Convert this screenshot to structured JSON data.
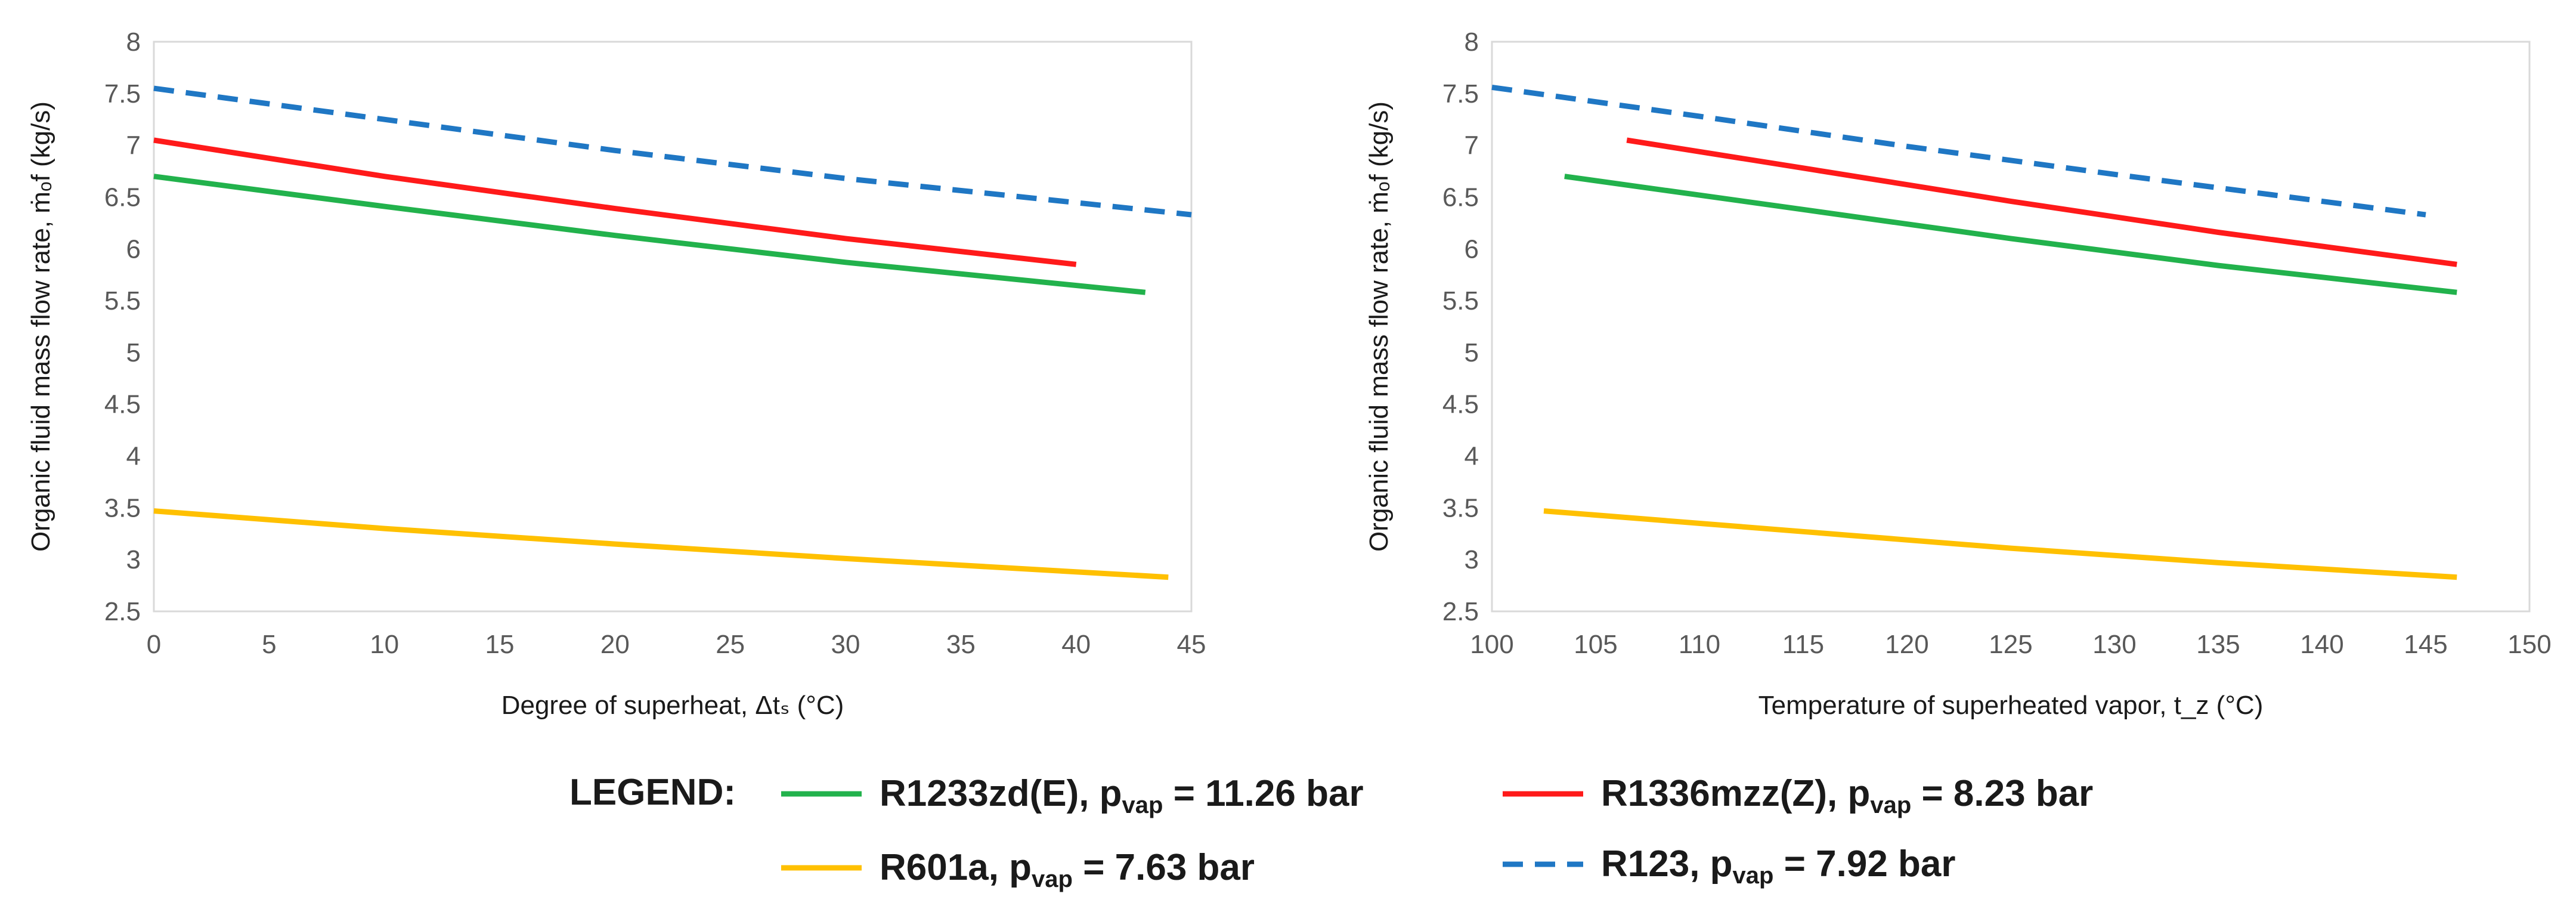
{
  "chart_data": [
    {
      "type": "line",
      "xlabel": "Degree of superheat, Δtₛ (°C)",
      "ylabel": "Organic fluid mass flow rate, ṁₒf (kg/s)",
      "xlim": [
        0,
        45
      ],
      "ylim": [
        2.5,
        8
      ],
      "xticks": [
        "0",
        "5",
        "10",
        "15",
        "20",
        "25",
        "30",
        "35",
        "40",
        "45"
      ],
      "yticks": [
        "2.5",
        "3",
        "3.5",
        "4",
        "4.5",
        "5",
        "5.5",
        "6",
        "6.5",
        "7",
        "7.5",
        "8"
      ],
      "grid": false,
      "series": [
        {
          "name": "R1233zd(E), pvap = 11.26 bar",
          "color": "#22b24c",
          "dash": "solid",
          "x": [
            0,
            10,
            20,
            30,
            43
          ],
          "y": [
            6.7,
            6.41,
            6.13,
            5.87,
            5.58
          ]
        },
        {
          "name": "R1336mzz(Z), pvap = 8.23 bar",
          "color": "#ff1a1a",
          "dash": "solid",
          "x": [
            0,
            10,
            20,
            30,
            40
          ],
          "y": [
            7.05,
            6.7,
            6.39,
            6.1,
            5.85
          ]
        },
        {
          "name": "R601a, pvap = 7.63 bar",
          "color": "#ffc000",
          "dash": "solid",
          "x": [
            0,
            10,
            20,
            30,
            44
          ],
          "y": [
            3.47,
            3.3,
            3.15,
            3.01,
            2.83
          ]
        },
        {
          "name": "R123, pvap = 7.92 bar",
          "color": "#1f77c4",
          "dash": "dashed",
          "x": [
            0,
            10,
            20,
            30,
            45
          ],
          "y": [
            7.55,
            7.25,
            6.95,
            6.68,
            6.33
          ]
        }
      ]
    },
    {
      "type": "line",
      "xlabel": "Temperature of superheated vapor, t_z (°C)",
      "ylabel": "Organic fluid mass flow rate, ṁₒf (kg/s)",
      "xlim": [
        100,
        150
      ],
      "ylim": [
        2.5,
        8
      ],
      "xticks": [
        "100",
        "105",
        "110",
        "115",
        "120",
        "125",
        "130",
        "135",
        "140",
        "145",
        "150"
      ],
      "yticks": [
        "2.5",
        "3",
        "3.5",
        "4",
        "4.5",
        "5",
        "5.5",
        "6",
        "6.5",
        "7",
        "7.5",
        "8"
      ],
      "grid": false,
      "series": [
        {
          "name": "R1233zd(E), pvap = 11.26 bar",
          "color": "#22b24c",
          "dash": "solid",
          "x": [
            103.5,
            115,
            125,
            135,
            146.5
          ],
          "y": [
            6.7,
            6.38,
            6.1,
            5.84,
            5.58
          ]
        },
        {
          "name": "R1336mzz(Z), pvap = 8.23 bar",
          "color": "#ff1a1a",
          "dash": "solid",
          "x": [
            106.5,
            115,
            125,
            135,
            146.5
          ],
          "y": [
            7.05,
            6.78,
            6.46,
            6.16,
            5.85
          ]
        },
        {
          "name": "R601a, pvap = 7.63 bar",
          "color": "#ffc000",
          "dash": "solid",
          "x": [
            102.5,
            115,
            125,
            135,
            146.5
          ],
          "y": [
            3.47,
            3.27,
            3.11,
            2.97,
            2.83
          ]
        },
        {
          "name": "R123, pvap = 7.92 bar",
          "color": "#1f77c4",
          "dash": "dashed",
          "x": [
            100,
            110,
            120,
            130,
            145
          ],
          "y": [
            7.56,
            7.28,
            6.99,
            6.72,
            6.33
          ]
        }
      ]
    }
  ],
  "legend": {
    "heading": "LEGEND:",
    "items": [
      {
        "label": "R1233zd(E), ",
        "pvar": "p",
        "sub": "vap",
        "value": " = 11.26 bar",
        "color": "#22b24c",
        "dash": "solid"
      },
      {
        "label": "R1336mzz(Z), ",
        "pvar": "p",
        "sub": "vap",
        "value": " = 8.23 bar",
        "color": "#ff1a1a",
        "dash": "solid"
      },
      {
        "label": "R601a, ",
        "pvar": "p",
        "sub": "vap",
        "value": " = 7.63 bar",
        "color": "#ffc000",
        "dash": "solid"
      },
      {
        "label": "R123, ",
        "pvar": "p",
        "sub": "vap",
        "value": " = 7.92 bar",
        "color": "#1f77c4",
        "dash": "dashed"
      }
    ]
  }
}
